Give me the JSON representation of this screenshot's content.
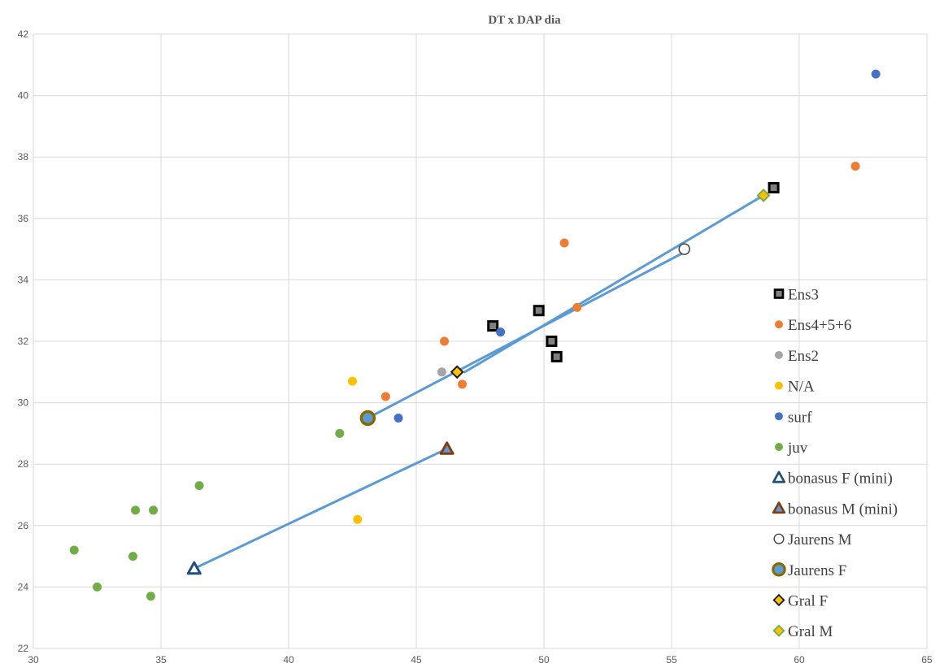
{
  "chart_data": {
    "type": "scatter",
    "title": "DT x DAP dia",
    "xlabel": "",
    "ylabel": "",
    "xlim": [
      30,
      65
    ],
    "ylim": [
      22,
      42
    ],
    "xticks": [
      30,
      35,
      40,
      45,
      50,
      55,
      60,
      65
    ],
    "yticks": [
      22,
      24,
      26,
      28,
      30,
      32,
      34,
      36,
      38,
      40,
      42
    ],
    "grid": true,
    "legend_position": "right",
    "series": [
      {
        "name": "Ens3",
        "marker": "square",
        "color": "#000000",
        "fill": "#808080",
        "points": [
          [
            48.0,
            32.5
          ],
          [
            49.8,
            33.0
          ],
          [
            50.3,
            32.0
          ],
          [
            50.5,
            31.5
          ],
          [
            59.0,
            37.0
          ]
        ]
      },
      {
        "name": "Ens4+5+6",
        "marker": "circle",
        "color": "#ED7D31",
        "points": [
          [
            43.8,
            30.2
          ],
          [
            46.1,
            32.0
          ],
          [
            46.8,
            30.6
          ],
          [
            50.8,
            35.2
          ],
          [
            51.3,
            33.1
          ],
          [
            62.2,
            37.7
          ]
        ]
      },
      {
        "name": "Ens2",
        "marker": "circle",
        "color": "#A5A5A5",
        "points": [
          [
            46.0,
            31.0
          ]
        ]
      },
      {
        "name": "N/A",
        "marker": "circle",
        "color": "#FFC000",
        "points": [
          [
            42.5,
            30.7
          ],
          [
            42.7,
            26.2
          ]
        ]
      },
      {
        "name": "surf",
        "marker": "circle",
        "color": "#4472C4",
        "points": [
          [
            44.3,
            29.5
          ],
          [
            48.3,
            32.3
          ],
          [
            63.0,
            40.7
          ]
        ]
      },
      {
        "name": "juv",
        "marker": "circle",
        "color": "#70AD47",
        "points": [
          [
            31.6,
            25.2
          ],
          [
            32.5,
            24.0
          ],
          [
            33.9,
            25.0
          ],
          [
            34.0,
            26.5
          ],
          [
            34.6,
            23.7
          ],
          [
            34.7,
            26.5
          ],
          [
            36.5,
            27.3
          ],
          [
            42.0,
            29.0
          ]
        ]
      },
      {
        "name": "bonasus F (mini)",
        "marker": "triangle",
        "color": "#1F4E79",
        "fill": "#FFFFFF",
        "points": [
          [
            36.3,
            24.6
          ]
        ]
      },
      {
        "name": "bonasus M (mini)",
        "marker": "triangle",
        "color": "#843C0C",
        "fill": "#5B9BD5",
        "points": [
          [
            46.2,
            28.5
          ]
        ]
      },
      {
        "name": "Jaurens M",
        "marker": "open-circle",
        "color": "#404040",
        "fill": "#FFFFFF",
        "points": [
          [
            55.5,
            35.0
          ]
        ]
      },
      {
        "name": "Jaurens F",
        "marker": "big-circle",
        "color": "#8A6A00",
        "fill": "#5B9BD5",
        "points": [
          [
            43.1,
            29.5
          ]
        ]
      },
      {
        "name": "Gral F",
        "marker": "diamond",
        "color": "#1a1a1a",
        "fill": "#FFC000",
        "points": [
          [
            46.6,
            31.0
          ]
        ]
      },
      {
        "name": "Gral M",
        "marker": "diamond",
        "color": "#70AD47",
        "fill": "#FFC000",
        "points": [
          [
            58.6,
            36.75
          ]
        ]
      }
    ],
    "lines": [
      {
        "name": "bonasus",
        "color": "#5B9BD5",
        "points": [
          [
            36.3,
            24.6
          ],
          [
            46.2,
            28.5
          ]
        ]
      },
      {
        "name": "Jaurens",
        "color": "#5B9BD5",
        "points": [
          [
            43.1,
            29.5
          ],
          [
            55.5,
            34.9
          ]
        ]
      },
      {
        "name": "Gral",
        "color": "#5B9BD5",
        "points": [
          [
            46.9,
            31.0
          ],
          [
            58.6,
            36.75
          ]
        ]
      }
    ]
  }
}
